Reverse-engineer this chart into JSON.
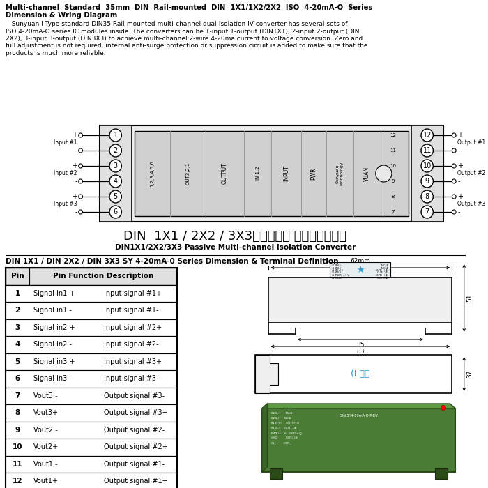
{
  "title_line1": "Multi-channel  Standard  35mm  DIN  Rail-mounted  DIN  1X1/1X2/2X2  ISO  4-20mA-O  Series",
  "title_line2": "Dimension & Wring Diagram",
  "body_lines": [
    "   Sunyuan I Type standard DIN35 Rail-mounted multi-channel dual-isolation IV converter has several sets of",
    "ISO 4-20mA-O series IC modules inside. The converters can be 1-input 1-output (DIN1X1), 2-input 2-output (DIN",
    "2X2), 3-input 3-output (DIN3X3) to achieve multi-channel 2-wire 4-20ma current to voltage conversion. Zero and",
    "full adjustment is not required, internal anti-surge protection or suppression circuit is added to make sure that the",
    "products is much more reliable."
  ],
  "chinese_label": "DIN  1X1 / 2X2 / 3X3（无源型） 多路隔离转换器",
  "english_label": "DIN1X1/2X2/3X3 Passive Multi-channel Isolation Converter",
  "section2_title": "DIN 1X1 / DIN 2X2 / DIN 3X3 SY 4-20mA-0 Series Dimension & Terminal Definition",
  "table_col1": [
    "1",
    "2",
    "3",
    "4",
    "5",
    "6",
    "7",
    "8",
    "9",
    "10",
    "11",
    "12"
  ],
  "table_col2": [
    "Signal in1 +",
    "Signal in1 -",
    "Signal in2 +",
    "Signal in2 -",
    "Signal in3 +",
    "Signal in3 -",
    "Vout3 -",
    "Vout3+",
    "Vout2 -",
    "Vout2+",
    "Vout1 -",
    "Vout1+"
  ],
  "table_col3": [
    "Input signal #1+",
    "Input signal #1-",
    "Input signal #2+",
    "Input signal #2-",
    "Input signal #3+",
    "Input signal #3-",
    "Output signal #3-",
    "Output signal #3+",
    "Output signal #2-",
    "Output signal #2+",
    "Output signal #1-",
    "Output signal #1+"
  ],
  "bg_color": "#ffffff",
  "dim_62": "62mm",
  "dim_35": "35",
  "dim_83": "83",
  "dim_51": "51",
  "dim_37": "37",
  "i_type_label": "(I 型）"
}
